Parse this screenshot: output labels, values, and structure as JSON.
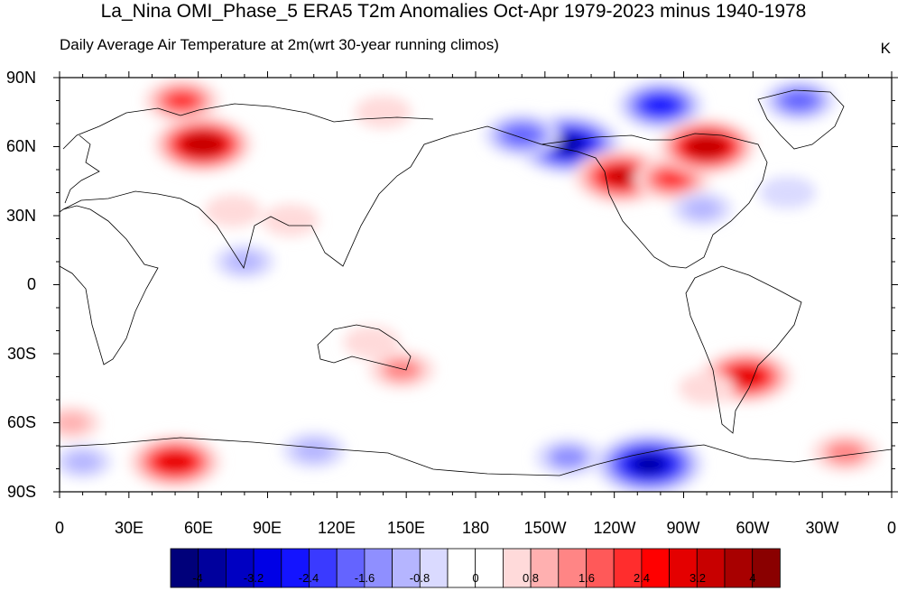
{
  "title": "La_Nina OMI_Phase_5 ERA5 T2m Anomalies Oct-Apr 1979-2023 minus 1940-1978",
  "subtitle": "Daily Average Air Temperature at 2m(wrt 30-year running climos)",
  "units": "K",
  "y_ticks": [
    "90N",
    "60N",
    "30N",
    "0",
    "30S",
    "60S",
    "90S"
  ],
  "x_ticks": [
    "0",
    "30E",
    "60E",
    "90E",
    "120E",
    "150E",
    "180",
    "150W",
    "120W",
    "90W",
    "60W",
    "30W",
    "0"
  ],
  "colorbar": {
    "labels": [
      "-4",
      "-3.2",
      "-2.4",
      "-1.6",
      "-0.8",
      "0",
      "0.8",
      "1.6",
      "2.4",
      "3.2",
      "4"
    ],
    "colors": [
      "#00007a",
      "#00009d",
      "#0000c2",
      "#0000e6",
      "#1414ff",
      "#3a3aff",
      "#6464ff",
      "#8f8fff",
      "#b5b5ff",
      "#dadaff",
      "#ffffff",
      "#ffffff",
      "#ffdada",
      "#ffb0b0",
      "#ff8585",
      "#ff5959",
      "#ff2d2d",
      "#ff0000",
      "#e40000",
      "#c80000",
      "#a80000",
      "#8a0000"
    ]
  },
  "chart_data": {
    "type": "heatmap",
    "title": "La_Nina OMI_Phase_5 ERA5 T2m Anomalies Oct-Apr 1979-2023 minus 1940-1978",
    "subtitle": "Daily Average Air Temperature at 2m(wrt 30-year running climos)",
    "units": "K",
    "x_range": [
      0,
      360
    ],
    "y_range": [
      -90,
      90
    ],
    "color_range": [
      -4.4,
      4.4
    ],
    "anomaly_features": [
      {
        "lon": 62,
        "lat": 61,
        "value": 3.4
      },
      {
        "lon": 53,
        "lat": 80,
        "value": 2.0
      },
      {
        "lon": 100,
        "lat": 28,
        "value": 0.8
      },
      {
        "lon": 75,
        "lat": 32,
        "value": 0.8
      },
      {
        "lon": 140,
        "lat": 75,
        "value": 0.8
      },
      {
        "lon": 220,
        "lat": 61,
        "value": -3.8
      },
      {
        "lon": 200,
        "lat": 65,
        "value": -2.0
      },
      {
        "lon": 260,
        "lat": 78,
        "value": -2.6
      },
      {
        "lon": 320,
        "lat": 80,
        "value": -1.8
      },
      {
        "lon": 243,
        "lat": 47,
        "value": 3.2
      },
      {
        "lon": 265,
        "lat": 46,
        "value": 2.0
      },
      {
        "lon": 280,
        "lat": 60,
        "value": 3.3
      },
      {
        "lon": 297,
        "lat": -40,
        "value": 3.0
      },
      {
        "lon": 280,
        "lat": -45,
        "value": 0.8
      },
      {
        "lon": 135,
        "lat": -25,
        "value": 0.8
      },
      {
        "lon": 148,
        "lat": -37,
        "value": 1.4
      },
      {
        "lon": 50,
        "lat": -77,
        "value": 3.0
      },
      {
        "lon": 255,
        "lat": -78,
        "value": -4.0
      },
      {
        "lon": 220,
        "lat": -75,
        "value": -1.4
      },
      {
        "lon": 110,
        "lat": -72,
        "value": -1.2
      },
      {
        "lon": 10,
        "lat": -77,
        "value": -0.9
      },
      {
        "lon": 340,
        "lat": -73,
        "value": 1.5
      },
      {
        "lon": 5,
        "lat": -60,
        "value": 0.9
      },
      {
        "lon": 80,
        "lat": 10,
        "value": -1.0
      },
      {
        "lon": 278,
        "lat": 33,
        "value": -1.0
      },
      {
        "lon": 315,
        "lat": 40,
        "value": -0.8
      }
    ]
  }
}
